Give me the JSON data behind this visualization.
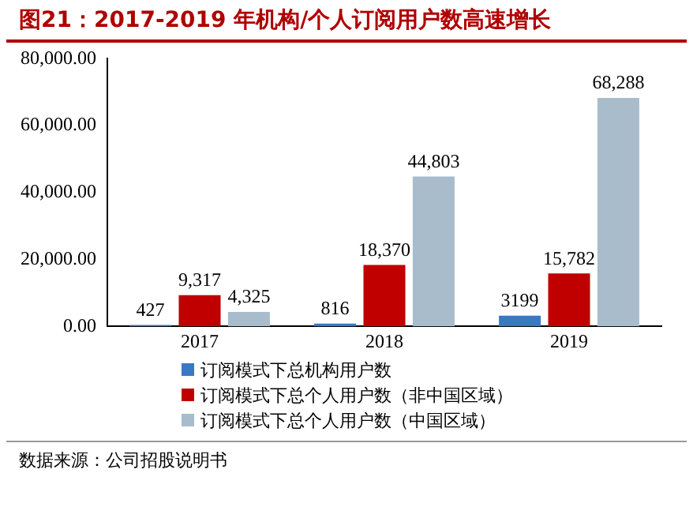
{
  "chart_data": {
    "type": "bar",
    "title": "图21：2017-2019 年机构/个人订阅用户数高速增长",
    "categories": [
      "2017",
      "2018",
      "2019"
    ],
    "series": [
      {
        "name": "订阅模式下总机构用户数",
        "color": "#3a78c2",
        "values": [
          427,
          816,
          3199
        ],
        "value_labels": [
          "427",
          "816",
          "3199"
        ]
      },
      {
        "name": "订阅模式下总个人用户数（非中国区域）",
        "color": "#c00000",
        "values": [
          9317,
          18370,
          15782
        ],
        "value_labels": [
          "9,317",
          "18,370",
          "15,782"
        ]
      },
      {
        "name": "订阅模式下总个人用户数（中国区域）",
        "color": "#a8bccb",
        "values": [
          4325,
          44803,
          68288
        ],
        "value_labels": [
          "4,325",
          "44,803",
          "68,288"
        ]
      }
    ],
    "ylim": [
      0,
      80000
    ],
    "yticks": [
      {
        "value": 0,
        "label": "0.00"
      },
      {
        "value": 20000,
        "label": "20,000.00"
      },
      {
        "value": 40000,
        "label": "40,000.00"
      },
      {
        "value": 60000,
        "label": "60,000.00"
      },
      {
        "value": 80000,
        "label": "80,000.00"
      }
    ],
    "grid": false,
    "legend": "bottom",
    "annotations": [
      "数据来源：公司招股说明书"
    ]
  }
}
